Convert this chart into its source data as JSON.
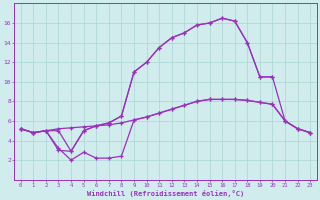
{
  "xlabel": "Windchill (Refroidissement éolien,°C)",
  "x_all": [
    0,
    1,
    2,
    3,
    4,
    5,
    6,
    7,
    8,
    9,
    10,
    11,
    12,
    13,
    14,
    15,
    16,
    17,
    18,
    19,
    20,
    21,
    22,
    23
  ],
  "lineA_y": [
    5.2,
    4.8,
    5.0,
    5.2,
    5.3,
    5.4,
    5.5,
    5.6,
    5.8,
    6.1,
    6.4,
    6.8,
    7.2,
    7.6,
    8.0,
    8.2,
    8.2,
    8.2,
    8.1,
    7.9,
    7.7,
    6.0,
    5.2,
    4.8
  ],
  "lineB_y": [
    5.2,
    4.8,
    5.0,
    3.2,
    2.0,
    2.8,
    2.2,
    2.2,
    2.4,
    6.1,
    6.4,
    6.8,
    7.2,
    7.6,
    8.0,
    8.2,
    8.2,
    8.2,
    8.1,
    7.9,
    7.7,
    6.0,
    5.2,
    4.8
  ],
  "lineC_x": [
    0,
    1,
    2,
    3,
    4,
    5,
    6,
    7,
    8,
    9,
    10,
    11,
    12,
    13,
    14,
    15,
    16,
    17,
    18,
    19,
    20
  ],
  "lineC_y": [
    5.2,
    4.8,
    5.0,
    5.0,
    2.9,
    5.0,
    5.5,
    5.8,
    6.5,
    11.0,
    12.0,
    13.5,
    14.5,
    15.0,
    15.8,
    16.0,
    16.5,
    16.2,
    14.0,
    10.5,
    10.5
  ],
  "lineD_x": [
    0,
    1,
    2,
    3,
    4,
    5,
    6,
    7,
    8,
    9,
    10,
    11,
    12,
    13,
    14,
    15,
    16,
    17,
    18,
    19,
    20,
    21,
    22,
    23
  ],
  "lineD_y": [
    5.2,
    4.8,
    5.0,
    3.0,
    2.9,
    5.0,
    5.5,
    5.8,
    6.5,
    11.0,
    12.0,
    13.5,
    14.5,
    15.0,
    15.8,
    16.0,
    16.5,
    16.2,
    14.0,
    10.5,
    10.5,
    6.0,
    5.2,
    4.8
  ],
  "line_color": "#9b30c0",
  "bg_color": "#d0ecec",
  "grid_color": "#aad4d4",
  "ylim": [
    0,
    18
  ],
  "xlim": [
    -0.5,
    23.5
  ],
  "yticks": [
    2,
    4,
    6,
    8,
    10,
    12,
    14,
    16
  ],
  "xticks": [
    0,
    1,
    2,
    3,
    4,
    5,
    6,
    7,
    8,
    9,
    10,
    11,
    12,
    13,
    14,
    15,
    16,
    17,
    18,
    19,
    20,
    21,
    22,
    23
  ]
}
